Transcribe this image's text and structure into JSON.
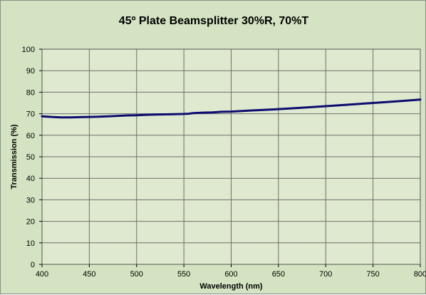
{
  "colors": {
    "outer_background": "#d4e4c2",
    "plot_background": "#dfe9cf",
    "gridline": "#6f6f6f",
    "series_line": "#0c0c6e"
  },
  "chart_data": {
    "type": "line",
    "title": "45º Plate Beamsplitter 30%R, 70%T",
    "xlabel": "Wavelength (nm)",
    "ylabel": "Transmission (%)",
    "xlim": [
      400,
      800
    ],
    "ylim": [
      0,
      100
    ],
    "xticks": [
      400,
      450,
      500,
      550,
      600,
      650,
      700,
      750,
      800
    ],
    "yticks": [
      0,
      10,
      20,
      30,
      40,
      50,
      60,
      70,
      80,
      90,
      100
    ],
    "grid": true,
    "legend": "none",
    "series": [
      {
        "x": [
          400,
          410,
          420,
          430,
          440,
          450,
          460,
          470,
          480,
          490,
          500,
          510,
          520,
          530,
          540,
          550,
          555,
          560,
          570,
          580,
          590,
          600,
          620,
          640,
          660,
          680,
          700,
          720,
          740,
          760,
          780,
          800
        ],
        "y": [
          68.8,
          68.5,
          68.3,
          68.3,
          68.4,
          68.5,
          68.6,
          68.8,
          69.0,
          69.2,
          69.3,
          69.5,
          69.6,
          69.7,
          69.8,
          69.9,
          70.0,
          70.3,
          70.5,
          70.6,
          70.9,
          71.0,
          71.5,
          71.9,
          72.4,
          72.9,
          73.5,
          74.1,
          74.7,
          75.3,
          75.9,
          76.6
        ]
      }
    ]
  }
}
